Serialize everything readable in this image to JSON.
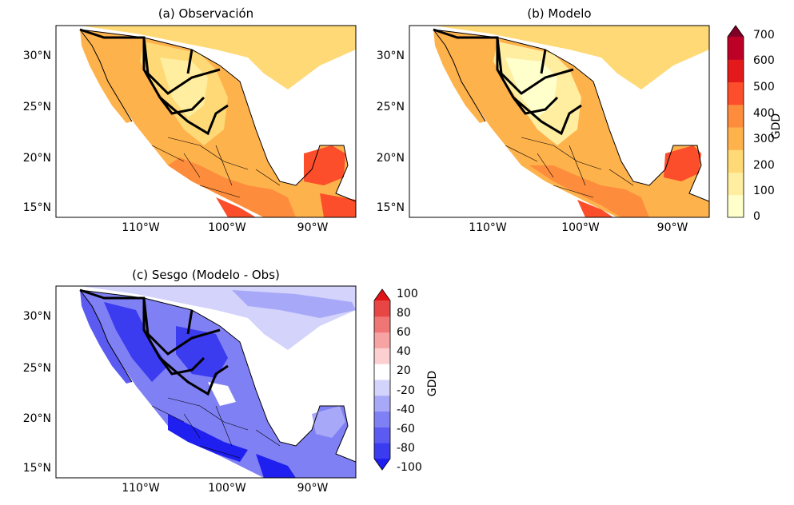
{
  "panels": {
    "a": {
      "title": "(a) Observación",
      "ticks_lat": [
        "30°N",
        "25°N",
        "20°N",
        "15°N"
      ],
      "ticks_lon": [
        "110°W",
        "100°W",
        "90°W"
      ]
    },
    "b": {
      "title": "(b) Modelo",
      "ticks_lat": [
        "30°N",
        "25°N",
        "20°N",
        "15°N"
      ],
      "ticks_lon": [
        "110°W",
        "100°W",
        "90°W"
      ]
    },
    "c": {
      "title": "(c) Sesgo (Modelo - Obs)",
      "ticks_lat": [
        "30°N",
        "25°N",
        "20°N",
        "15°N"
      ],
      "ticks_lon": [
        "110°W",
        "100°W",
        "90°W"
      ]
    }
  },
  "colorbar_gdd": {
    "label": "GDD",
    "ticks": [
      "700",
      "600",
      "500",
      "400",
      "300",
      "200",
      "100",
      "0"
    ],
    "colors": [
      "#ffffcc",
      "#ffeda0",
      "#fed976",
      "#feb24c",
      "#fd8d3c",
      "#fc4e2a",
      "#e31a1c",
      "#bd0026",
      "#800026"
    ]
  },
  "colorbar_bias": {
    "label": "GDD",
    "ticks": [
      "100",
      "80",
      "60",
      "40",
      "20",
      "-20",
      "-40",
      "-60",
      "-80",
      "-100"
    ],
    "colors": [
      "#1f1ff0",
      "#3b3bf0",
      "#5b5bf2",
      "#8080f5",
      "#a8a8f8",
      "#d3d3fb",
      "#ffffff",
      "#fcd0d0",
      "#f7a3a3",
      "#f07575",
      "#e84545",
      "#e01414"
    ]
  },
  "colors": {
    "ocean": "#ffffff",
    "coast": "#000000"
  }
}
